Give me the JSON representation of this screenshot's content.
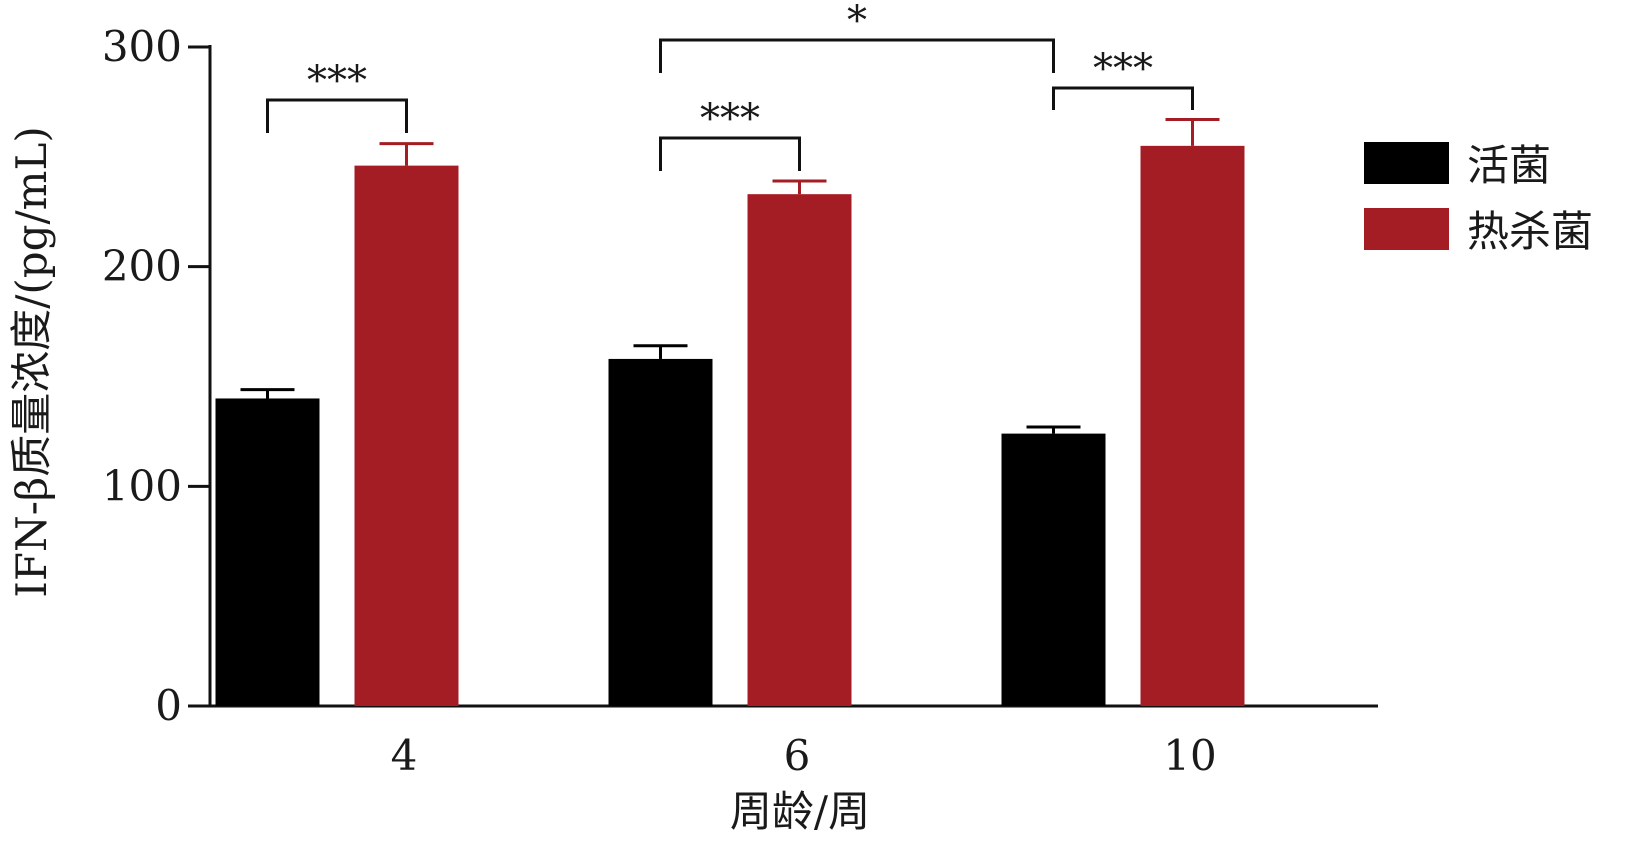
{
  "chart_data": {
    "type": "bar",
    "title": "",
    "xlabel": "周龄/周",
    "ylabel": "IFN-β质量浓度/(pg/mL)",
    "ylim": [
      0,
      300
    ],
    "yticks": [
      "0",
      "100",
      "200",
      "300"
    ],
    "categories": [
      "4",
      "6",
      "10"
    ],
    "series": [
      {
        "name": "活菌",
        "color": "#000000",
        "values": [
          140,
          158,
          124
        ],
        "errors": [
          4,
          6,
          3
        ]
      },
      {
        "name": "热杀菌",
        "color": "#a51d24",
        "values": [
          246,
          233,
          255
        ],
        "errors": [
          10,
          6,
          12
        ]
      }
    ],
    "significance": [
      {
        "label": "***",
        "from": "4 活菌",
        "to": "4 热杀菌"
      },
      {
        "label": "***",
        "from": "6 活菌",
        "to": "6 热杀菌"
      },
      {
        "label": "*",
        "from": "6 活菌",
        "to": "10 活菌"
      },
      {
        "label": "***",
        "from": "10 活菌",
        "to": "10 热杀菌"
      }
    ],
    "legend_position": "right",
    "grid": false
  }
}
